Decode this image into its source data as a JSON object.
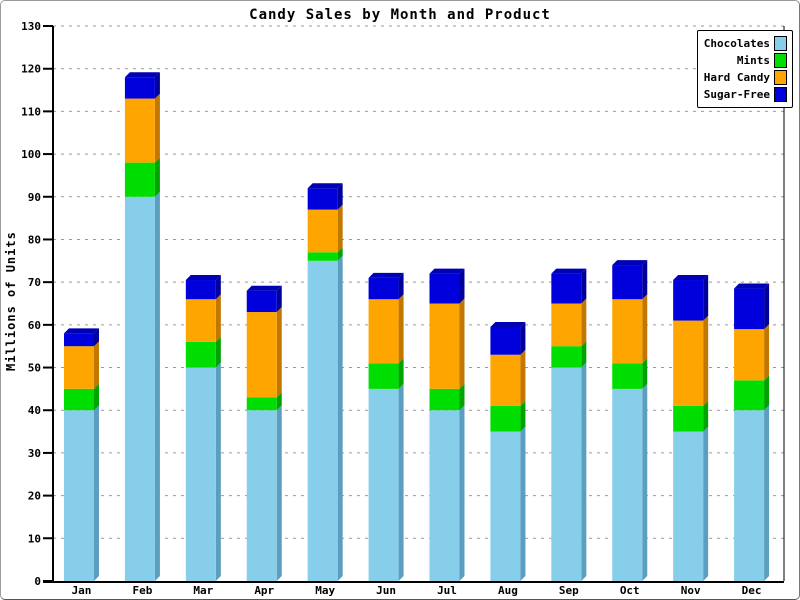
{
  "window": {
    "background": "#ffffff",
    "frame_border_color": "#9a9a9a"
  },
  "chart_data": {
    "type": "bar",
    "stacked": true,
    "pseudo_3d": true,
    "title": "Candy Sales by Month and Product",
    "xlabel": "",
    "ylabel": "Millions of Units",
    "ylim": [
      0,
      130
    ],
    "ytick_step": 10,
    "ytick_labels": [
      "0",
      "10",
      "20",
      "30",
      "40",
      "50",
      "60",
      "70",
      "80",
      "90",
      "100",
      "110",
      "120",
      "130"
    ],
    "grid": "horizontal-dashed",
    "grid_color": "#999999",
    "axis_color": "#000000",
    "legend_position": "top-right",
    "categories": [
      "Jan",
      "Feb",
      "Mar",
      "Apr",
      "May",
      "Jun",
      "Jul",
      "Aug",
      "Sep",
      "Oct",
      "Nov",
      "Dec"
    ],
    "series": [
      {
        "name": "Chocolates",
        "color": "#87CEEB",
        "side_color": "#5B9EC0",
        "values": [
          40,
          90,
          50,
          40,
          75,
          45,
          40,
          35,
          50,
          45,
          35,
          40
        ]
      },
      {
        "name": "Mints",
        "color": "#00DD00",
        "side_color": "#00A300",
        "values": [
          5,
          8,
          6,
          3,
          2,
          6,
          5,
          6,
          5,
          6,
          6,
          7
        ]
      },
      {
        "name": "Hard Candy",
        "color": "#FFA500",
        "side_color": "#C27700",
        "values": [
          10,
          15,
          10,
          20,
          10,
          15,
          20,
          12,
          10,
          15,
          20,
          12
        ]
      },
      {
        "name": "Sugar-Free",
        "color": "#0000DC",
        "side_color": "#00009A",
        "top_color": "#0000B4",
        "values": [
          3,
          5,
          4.5,
          5,
          5,
          5,
          7,
          6.5,
          7,
          8,
          9.5,
          9.5
        ]
      }
    ],
    "stack_totals": [
      58,
      118,
      70.5,
      68,
      92,
      71,
      72,
      59.5,
      72,
      74,
      70.5,
      68.5
    ]
  }
}
